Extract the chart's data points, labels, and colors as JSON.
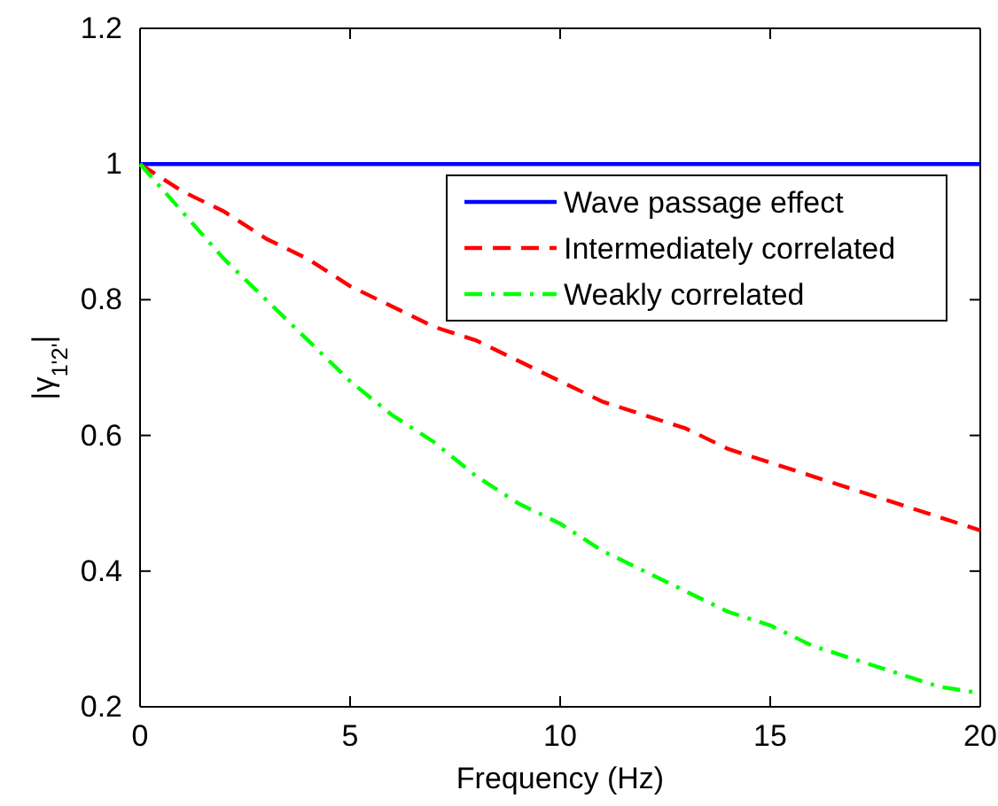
{
  "chart_data": {
    "type": "line",
    "xlabel": "Frequency (Hz)",
    "ylabel": "|γ$_{1'2'}$|",
    "x": [
      0,
      1,
      2,
      3,
      4,
      5,
      6,
      7,
      8,
      9,
      10,
      11,
      12,
      13,
      14,
      15,
      16,
      17,
      18,
      19,
      20
    ],
    "series": [
      {
        "name": "Wave passage effect",
        "color": "#0000ff",
        "line_style": "solid",
        "values": [
          1,
          1,
          1,
          1,
          1,
          1,
          1,
          1,
          1,
          1,
          1,
          1,
          1,
          1,
          1,
          1,
          1,
          1,
          1,
          1,
          1
        ]
      },
      {
        "name": "Intermediately correlated",
        "color": "#ff0000",
        "line_style": "dashed",
        "values": [
          1,
          0.96,
          0.93,
          0.89,
          0.86,
          0.82,
          0.79,
          0.76,
          0.74,
          0.71,
          0.68,
          0.65,
          0.63,
          0.61,
          0.58,
          0.56,
          0.54,
          0.52,
          0.5,
          0.48,
          0.46
        ]
      },
      {
        "name": "Weakly correlated",
        "color": "#00ff00",
        "line_style": "dashdot",
        "values": [
          1,
          0.93,
          0.86,
          0.8,
          0.74,
          0.68,
          0.63,
          0.59,
          0.54,
          0.5,
          0.47,
          0.43,
          0.4,
          0.37,
          0.34,
          0.32,
          0.29,
          0.27,
          0.25,
          0.23,
          0.22
        ]
      }
    ],
    "xlim": [
      0,
      20
    ],
    "xticks": [
      0,
      5,
      10,
      15,
      20
    ],
    "ylim": [
      0.2,
      1.2
    ],
    "yticks": [
      0.2,
      0.4,
      0.6,
      0.8,
      1,
      1.2
    ],
    "grid": false,
    "legend": "top right",
    "marker": "none"
  }
}
